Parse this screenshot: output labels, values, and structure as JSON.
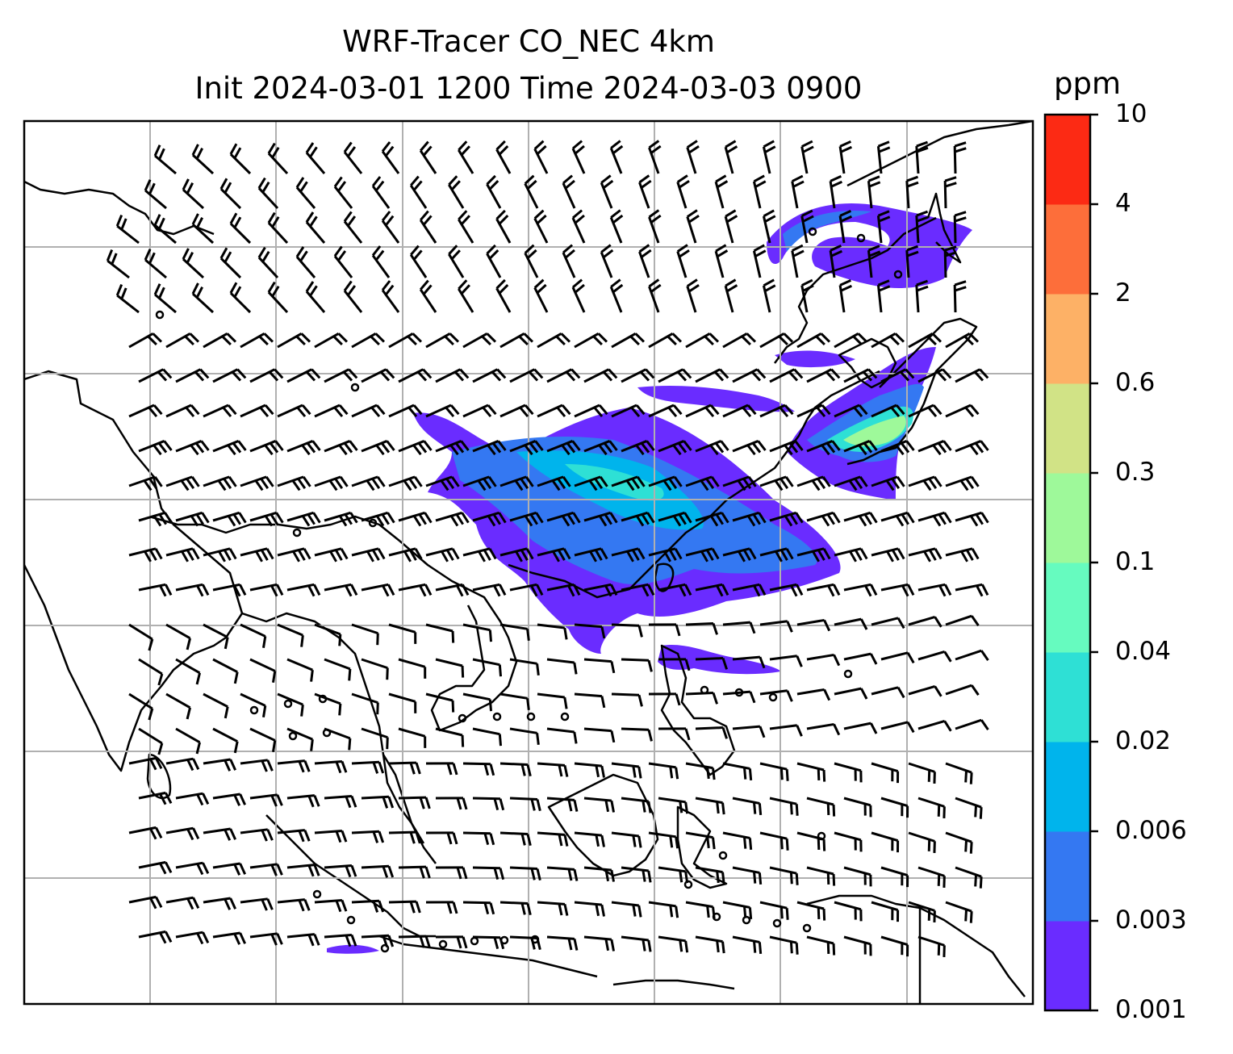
{
  "title": {
    "line1": "WRF-Tracer CO_NEC 4km",
    "line2": "Init 2024-03-01 1200 Time 2024-03-03 0900"
  },
  "colorbar": {
    "unit": "ppm",
    "ticks": [
      "0.001",
      "0.003",
      "0.006",
      "0.02",
      "0.04",
      "0.1",
      "0.3",
      "0.6",
      "2",
      "4",
      "10"
    ],
    "colors": [
      "#6a2cff",
      "#3478f2",
      "#00b4ec",
      "#2ee0d5",
      "#66fbbf",
      "#9ef99a",
      "#d1e386",
      "#fdb166",
      "#fd6e3a",
      "#fc2a14"
    ]
  },
  "map": {
    "gridlines": "on",
    "colors": {
      "coast": "#000000",
      "grid": "#b0b0b0",
      "barb": "#000000"
    }
  }
}
